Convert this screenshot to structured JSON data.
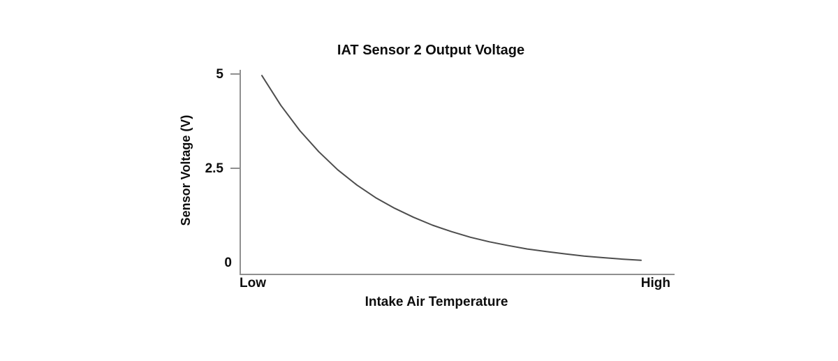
{
  "chart_data": {
    "type": "line",
    "title": "IAT Sensor 2 Output Voltage",
    "xlabel": "Intake Air Temperature",
    "ylabel": "Sensor Voltage (V)",
    "grid": false,
    "legend": false,
    "x_axis": {
      "kind": "qualitative",
      "tick_labels": [
        "Low",
        "High"
      ]
    },
    "y_axis": {
      "range": [
        0,
        5
      ],
      "ticks": [
        {
          "label": "5",
          "value": 5,
          "tick_mark": true
        },
        {
          "label": "2.5",
          "value": 2.5,
          "tick_mark": true
        },
        {
          "label": "0",
          "value": 0,
          "tick_mark": false
        }
      ]
    },
    "colors": {
      "curve": "#4d4d4d",
      "axis": "#8f8f8f",
      "text": "#0d0d0d"
    },
    "series": [
      {
        "name": "IAT Sensor 2 output voltage vs intake air temperature",
        "x_fraction": [
          0,
          0.05,
          0.1,
          0.15,
          0.2,
          0.25,
          0.3,
          0.35,
          0.4,
          0.45,
          0.5,
          0.55,
          0.6,
          0.65,
          0.7,
          0.75,
          0.8,
          0.85,
          0.9,
          0.95,
          1
        ],
        "voltage": [
          4.96,
          4.17,
          3.5,
          2.94,
          2.46,
          2.06,
          1.72,
          1.44,
          1.2,
          0.99,
          0.82,
          0.67,
          0.55,
          0.45,
          0.36,
          0.29,
          0.23,
          0.17,
          0.13,
          0.09,
          0.06
        ]
      }
    ]
  }
}
